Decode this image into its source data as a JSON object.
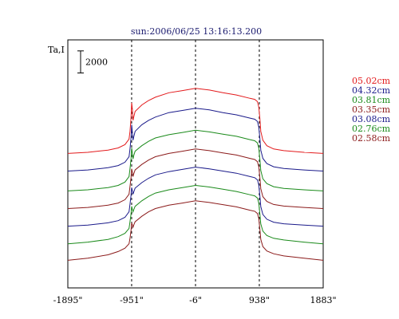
{
  "chart_data": {
    "type": "line",
    "title": "sun:2006/06/25 13:16:13.200",
    "ylabel": "Ta,I",
    "scale_bar_label": "2000",
    "scale_bar_value": 2000,
    "xlim": [
      -1895,
      1883
    ],
    "x_ticks": [
      {
        "value": -1895,
        "label": "-1895\""
      },
      {
        "value": -951,
        "label": "-951\""
      },
      {
        "value": -6,
        "label": "-6\""
      },
      {
        "value": 938,
        "label": "938\""
      },
      {
        "value": 1883,
        "label": "1883\""
      }
    ],
    "vlines": [
      -951,
      -6,
      938
    ],
    "ylim": [
      -1000,
      21500
    ],
    "grid": false,
    "legend_position": "right",
    "series": [
      {
        "name": "05.02cm",
        "color": "#e31a1c",
        "offset": 11200,
        "x": [
          -1895,
          -1600,
          -1300,
          -1150,
          -1050,
          -990,
          -975,
          -960,
          -951,
          -940,
          -930,
          -920,
          -900,
          -800,
          -700,
          -600,
          -400,
          -200,
          -6,
          200,
          400,
          600,
          800,
          870,
          910,
          930,
          945,
          960,
          990,
          1050,
          1150,
          1300,
          1600,
          1883
        ],
        "y": [
          0,
          100,
          300,
          500,
          800,
          1300,
          2000,
          3200,
          4600,
          4000,
          3000,
          3300,
          3800,
          4400,
          4800,
          5100,
          5500,
          5700,
          5900,
          5750,
          5500,
          5300,
          5000,
          4900,
          4700,
          4200,
          3200,
          2000,
          1200,
          700,
          400,
          250,
          100,
          0
        ]
      },
      {
        "name": "04.32cm",
        "color": "#1a1a8a",
        "offset": 9600,
        "x": [
          -1895,
          -1600,
          -1300,
          -1150,
          -1050,
          -990,
          -975,
          -960,
          -951,
          -940,
          -930,
          -920,
          -900,
          -800,
          -700,
          -600,
          -400,
          -200,
          -6,
          200,
          400,
          600,
          800,
          870,
          910,
          930,
          945,
          960,
          990,
          1050,
          1150,
          1300,
          1600,
          1883
        ],
        "y": [
          0,
          100,
          300,
          500,
          800,
          1300,
          2000,
          3000,
          4200,
          3500,
          2800,
          3100,
          3600,
          4200,
          4600,
          4900,
          5300,
          5500,
          5700,
          5550,
          5300,
          5100,
          4800,
          4700,
          4500,
          4000,
          3000,
          1900,
          1150,
          680,
          390,
          240,
          100,
          0
        ]
      },
      {
        "name": "03.81cm",
        "color": "#1a8a1a",
        "offset": 7800,
        "x": [
          -1895,
          -1600,
          -1300,
          -1150,
          -1050,
          -990,
          -975,
          -960,
          -951,
          -940,
          -930,
          -920,
          -900,
          -800,
          -700,
          -600,
          -400,
          -200,
          -6,
          200,
          400,
          600,
          800,
          870,
          910,
          930,
          945,
          960,
          990,
          1050,
          1150,
          1300,
          1600,
          1883
        ],
        "y": [
          0,
          100,
          300,
          500,
          800,
          1300,
          2000,
          2900,
          3900,
          3400,
          2900,
          3200,
          3600,
          4100,
          4500,
          4800,
          5100,
          5300,
          5500,
          5350,
          5150,
          4950,
          4650,
          4550,
          4350,
          3900,
          2900,
          1850,
          1100,
          660,
          380,
          230,
          100,
          0
        ]
      },
      {
        "name": "03.35cm",
        "color": "#8b1a1a",
        "offset": 6200,
        "x": [
          -1895,
          -1600,
          -1300,
          -1150,
          -1050,
          -990,
          -975,
          -960,
          -951,
          -940,
          -930,
          -920,
          -900,
          -800,
          -700,
          -600,
          -400,
          -200,
          -6,
          200,
          400,
          600,
          800,
          870,
          910,
          930,
          945,
          960,
          990,
          1050,
          1150,
          1300,
          1600,
          1883
        ],
        "y": [
          0,
          100,
          300,
          500,
          800,
          1300,
          2000,
          2800,
          3600,
          3300,
          2900,
          3150,
          3500,
          4000,
          4400,
          4700,
          5000,
          5200,
          5400,
          5250,
          5050,
          4850,
          4550,
          4450,
          4250,
          3800,
          2850,
          1800,
          1080,
          640,
          370,
          220,
          100,
          0
        ]
      },
      {
        "name": "03.08cm",
        "color": "#1a1a8a",
        "offset": 4600,
        "x": [
          -1895,
          -1600,
          -1300,
          -1150,
          -1050,
          -990,
          -975,
          -960,
          -951,
          -940,
          -930,
          -920,
          -900,
          -800,
          -700,
          -600,
          -400,
          -200,
          -6,
          200,
          400,
          600,
          800,
          870,
          910,
          930,
          945,
          960,
          990,
          1050,
          1150,
          1300,
          1600,
          1883
        ],
        "y": [
          0,
          100,
          300,
          500,
          800,
          1300,
          2000,
          2800,
          3500,
          3200,
          2900,
          3100,
          3450,
          3950,
          4350,
          4650,
          4950,
          5150,
          5350,
          5200,
          5000,
          4800,
          4500,
          4400,
          4200,
          3750,
          2800,
          1780,
          1060,
          630,
          360,
          220,
          100,
          0
        ]
      },
      {
        "name": "02.76cm",
        "color": "#1a8a1a",
        "offset": 3000,
        "x": [
          -1895,
          -1600,
          -1300,
          -1150,
          -1050,
          -990,
          -975,
          -960,
          -951,
          -940,
          -930,
          -920,
          -900,
          -800,
          -700,
          -600,
          -400,
          -200,
          -6,
          200,
          400,
          600,
          800,
          870,
          910,
          930,
          945,
          960,
          990,
          1050,
          1150,
          1300,
          1600,
          1883
        ],
        "y": [
          0,
          150,
          400,
          650,
          950,
          1400,
          2000,
          2700,
          3400,
          3100,
          2900,
          3100,
          3400,
          3900,
          4300,
          4600,
          4900,
          5100,
          5300,
          5150,
          4950,
          4750,
          4450,
          4350,
          4150,
          3700,
          2750,
          1800,
          1150,
          750,
          500,
          350,
          150,
          0
        ]
      },
      {
        "name": "02.58cm",
        "color": "#8b1a1a",
        "offset": 1500,
        "x": [
          -1895,
          -1600,
          -1300,
          -1150,
          -1050,
          -990,
          -975,
          -960,
          -951,
          -940,
          -930,
          -920,
          -900,
          -800,
          -700,
          -600,
          -400,
          -200,
          -6,
          200,
          400,
          600,
          800,
          870,
          910,
          930,
          945,
          960,
          990,
          1050,
          1150,
          1300,
          1600,
          1883
        ],
        "y": [
          0,
          200,
          500,
          800,
          1100,
          1500,
          2000,
          2700,
          3400,
          3200,
          3000,
          3200,
          3500,
          4000,
          4400,
          4700,
          5000,
          5200,
          5400,
          5250,
          5050,
          4850,
          4550,
          4450,
          4250,
          3800,
          2850,
          1900,
          1250,
          850,
          600,
          400,
          200,
          0
        ]
      }
    ]
  }
}
